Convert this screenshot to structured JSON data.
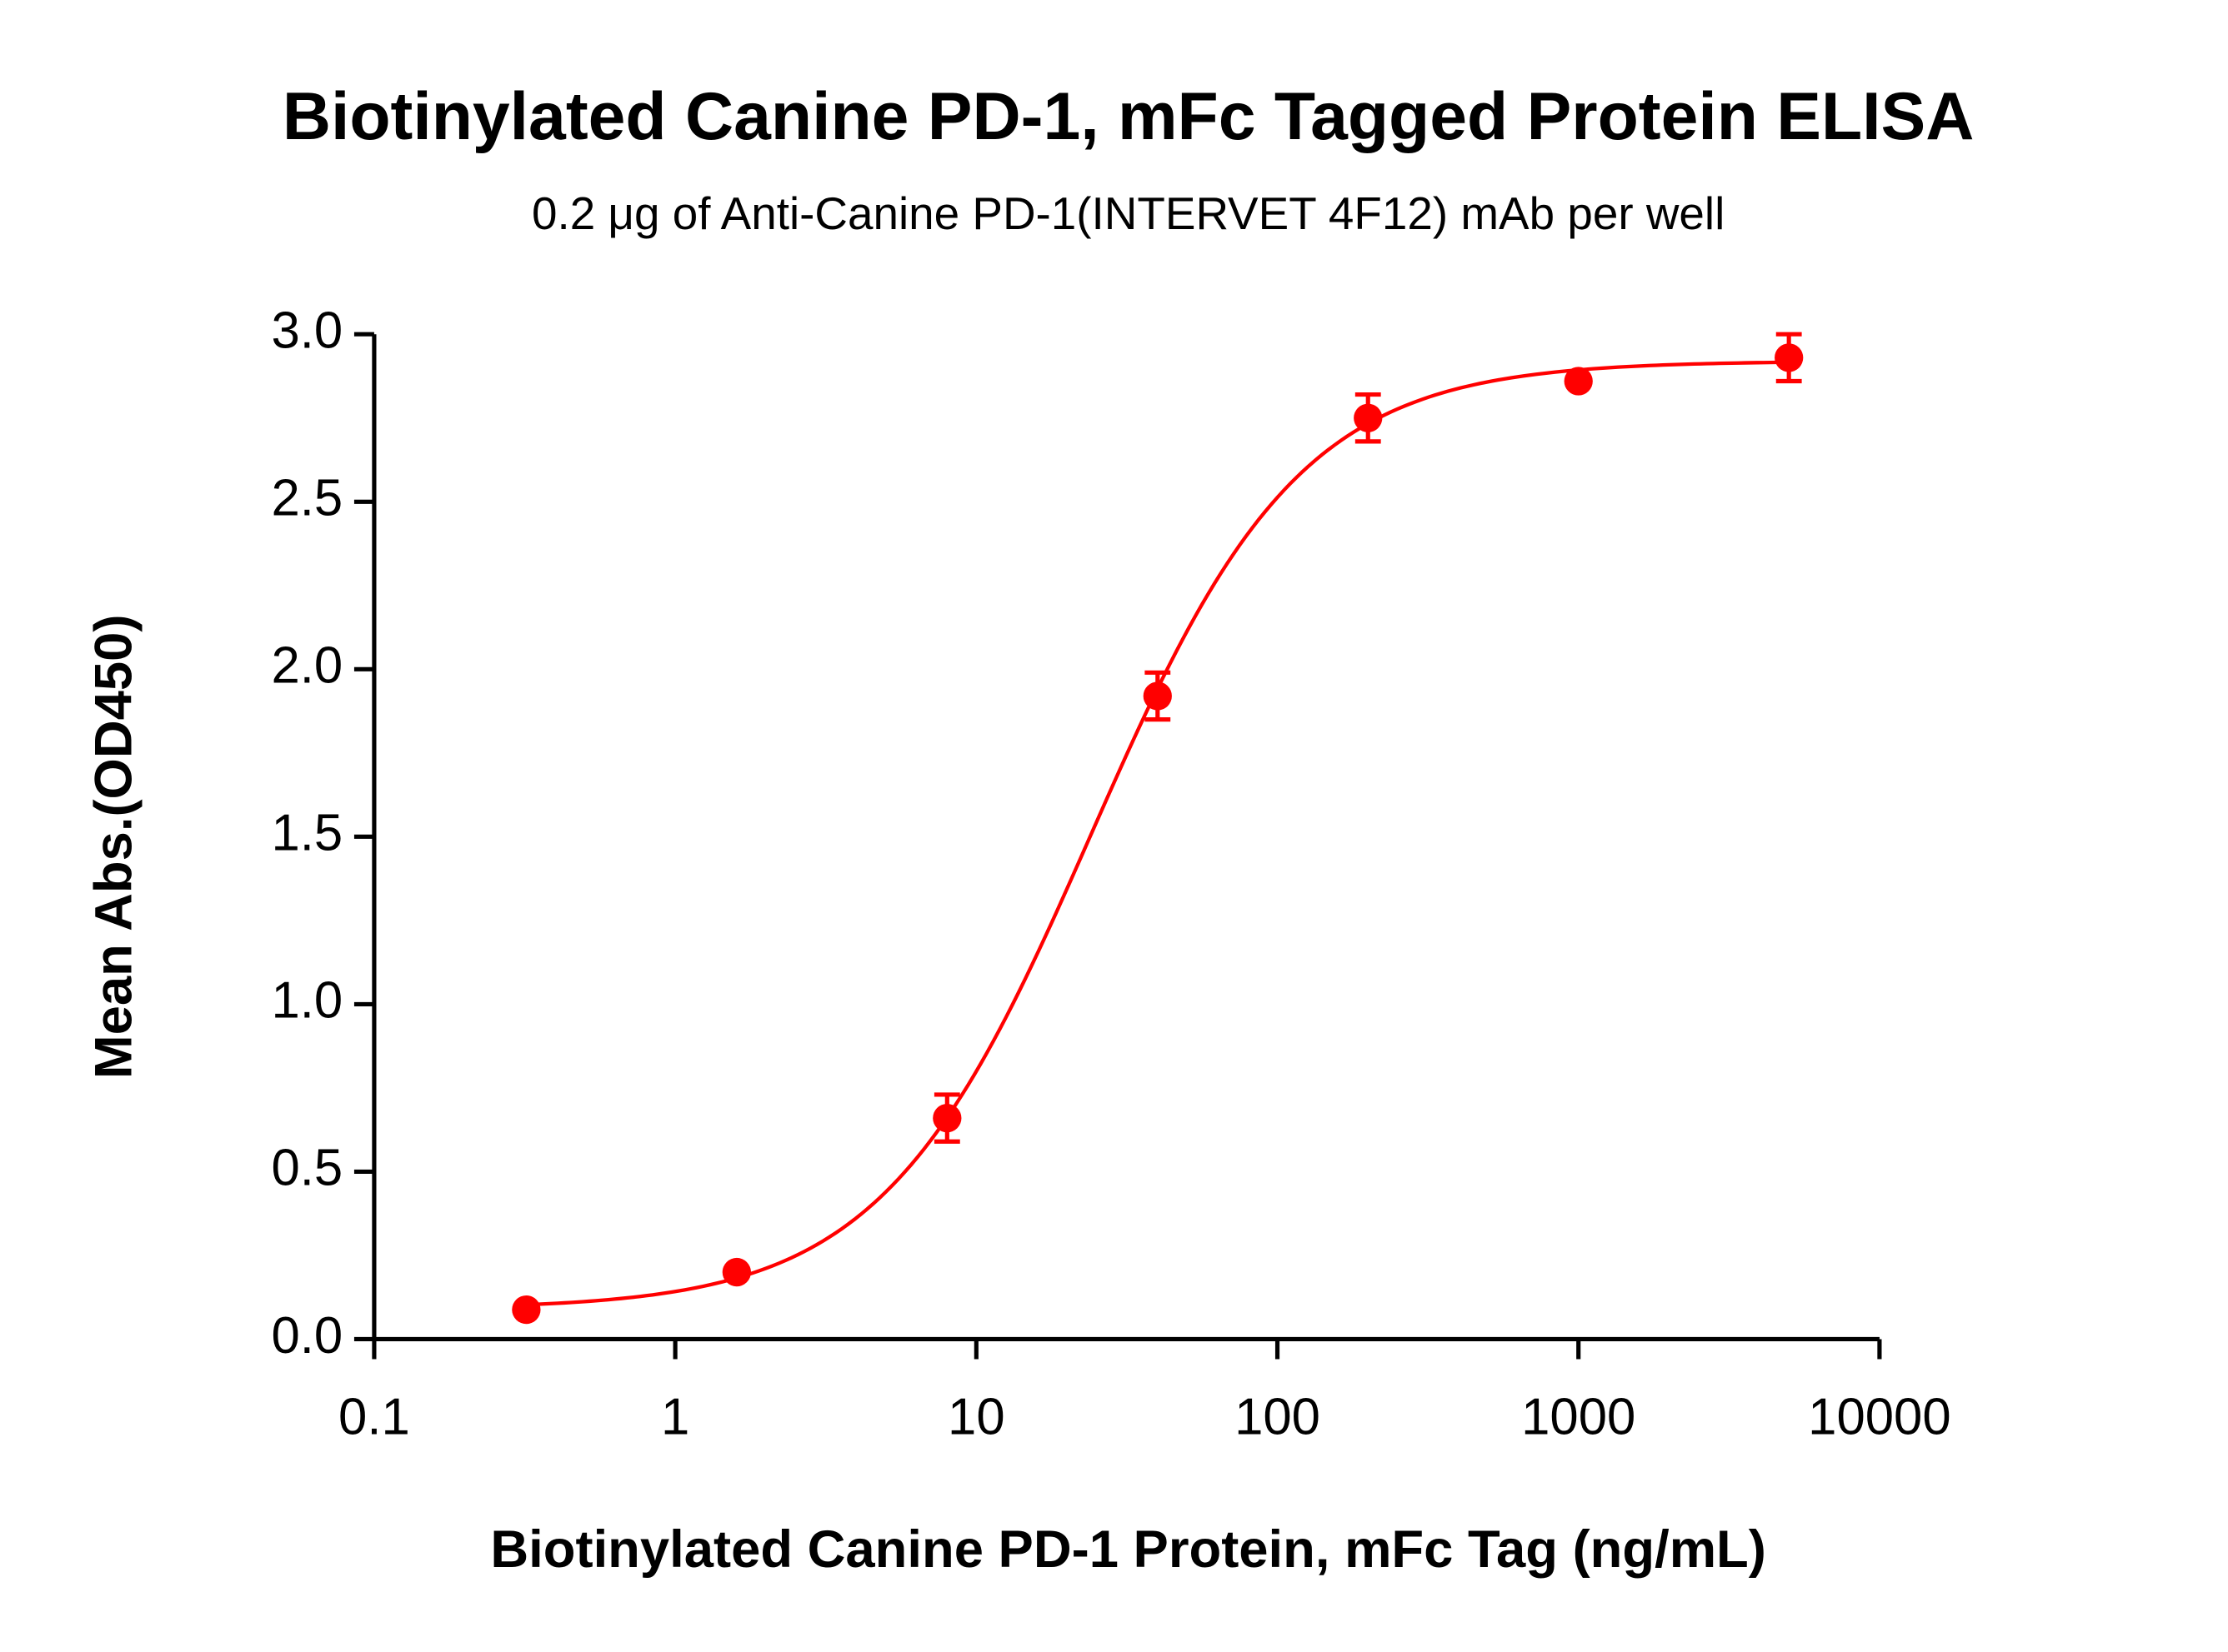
{
  "chart_data": {
    "type": "scatter",
    "title": "Biotinylated Canine PD-1, mFc Tagged Protein ELISA",
    "subtitle": "0.2 μg of Anti-Canine PD-1(INTERVET 4F12) mAb per well",
    "x_label": "Biotinylated Canine PD-1 Protein, mFc Tag (ng/mL)",
    "y_label": "Mean Abs.(OD450)",
    "x_scale": "log",
    "xlim": [
      0.1,
      10000
    ],
    "xticks": [
      0.1,
      1,
      10,
      100,
      1000,
      10000
    ],
    "ylim": [
      0,
      3
    ],
    "yticks": [
      {
        "value": 0,
        "label": "0.0"
      },
      0.5,
      {
        "value": 1,
        "label": "1.0"
      },
      1.5,
      {
        "value": 2,
        "label": "2.0"
      },
      2.5,
      {
        "value": 3,
        "label": "3.0"
      }
    ],
    "series": [
      {
        "color": "#ff0000",
        "x": [
          0.32,
          1.6,
          8,
          40,
          200,
          1000,
          5000
        ],
        "values": [
          0.088,
          0.2,
          0.66,
          1.92,
          2.75,
          2.86,
          2.93
        ],
        "errors": [
          0,
          0,
          0.07,
          0.07,
          0.07,
          0,
          0.07
        ]
      }
    ],
    "fit": {
      "model": "4PL",
      "bottom": 0.09,
      "top": 2.92,
      "ec50": 24,
      "hill": 1.25
    }
  }
}
